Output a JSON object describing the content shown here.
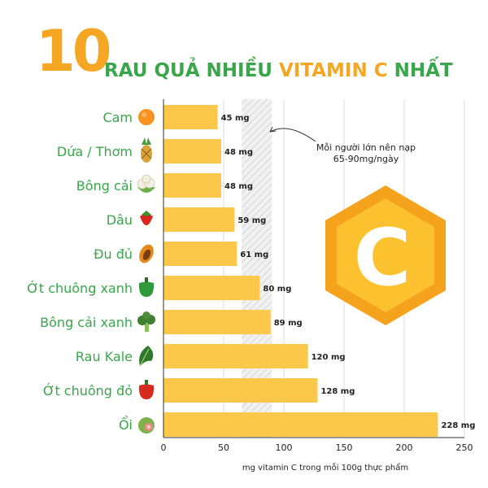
{
  "title": {
    "number": "10",
    "part1": "RAU QUẢ NHIỀU ",
    "part2": "VITAMIN C",
    "part3": " NHẤT"
  },
  "colors": {
    "bar": "#fbc84a",
    "label_green": "#3aa64c",
    "title_orange": "#f5a623",
    "hex_orange": "#f5a31d",
    "hex_yellow": "#fcc12e",
    "band": "#e9e9e9",
    "grid": "#dcdcdc"
  },
  "annotation": {
    "line1": "Mỗi người lớn nên nạp",
    "line2": "65-90mg/ngày",
    "range": [
      65,
      90
    ]
  },
  "logo_letter": "C",
  "chart_data": {
    "type": "bar",
    "orientation": "horizontal",
    "categories": [
      "Cam",
      "Dứa / Thơm",
      "Bông cải",
      "Dâu",
      "Đu đủ",
      "Ớt chuông xanh",
      "Bông cải xanh",
      "Rau Kale",
      "Ớt chuông đỏ",
      "Ổi"
    ],
    "icons": [
      "orange-icon",
      "pineapple-icon",
      "cauliflower-icon",
      "strawberry-icon",
      "papaya-icon",
      "green-pepper-icon",
      "broccoli-icon",
      "kale-icon",
      "red-pepper-icon",
      "guava-icon"
    ],
    "values": [
      45,
      48,
      48,
      59,
      61,
      80,
      89,
      120,
      128,
      228
    ],
    "value_labels": [
      "45 mg",
      "48 mg",
      "48 mg",
      "59 mg",
      "61 mg",
      "80 mg",
      "89 mg",
      "120 mg",
      "128 mg",
      "228 mg"
    ],
    "xlim": [
      0,
      250
    ],
    "xticks": [
      0,
      50,
      100,
      150,
      200,
      250
    ],
    "xlabel": "mg vitamin C trong mỗi 100g thực phẩm",
    "ylabel": "",
    "grid": true,
    "title": "10 RAU QUẢ NHIỀU VITAMIN C NHẤT"
  }
}
